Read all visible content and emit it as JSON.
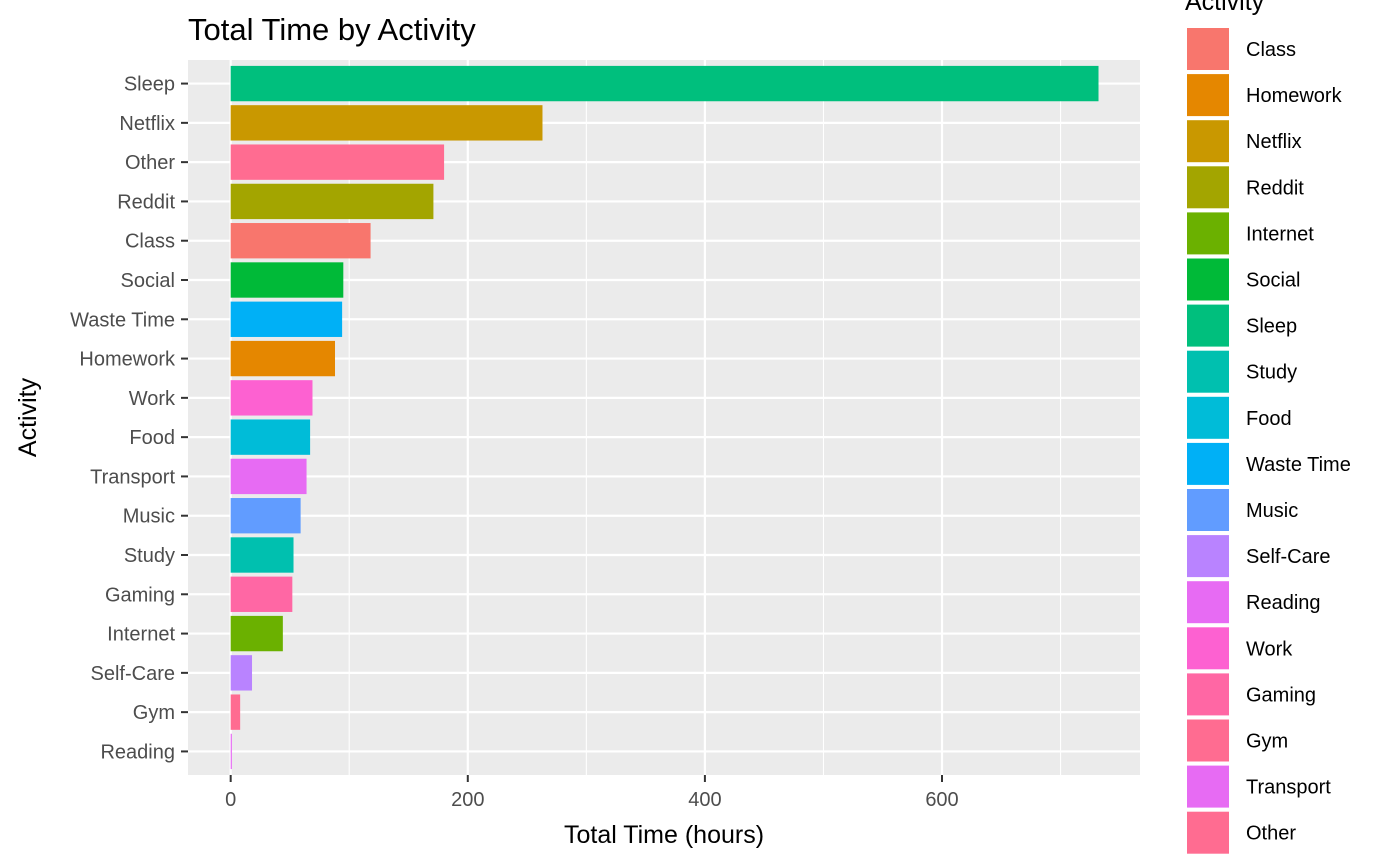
{
  "chart_data": {
    "type": "bar",
    "orientation": "horizontal",
    "title": "Total Time by Activity",
    "xlabel": "Total Time (hours)",
    "ylabel": "Activity",
    "xlim": [
      -36,
      767
    ],
    "xticks": [
      0,
      200,
      400,
      600
    ],
    "grid": true,
    "legend_title": "Activity",
    "legend_position": "right",
    "categories": [
      "Sleep",
      "Netflix",
      "Other",
      "Reddit",
      "Class",
      "Social",
      "Waste Time",
      "Homework",
      "Work",
      "Food",
      "Transport",
      "Music",
      "Study",
      "Gaming",
      "Internet",
      "Self-Care",
      "Gym",
      "Reading"
    ],
    "values": [
      732,
      263,
      180,
      171,
      118,
      95,
      94,
      88,
      69,
      67,
      64,
      59,
      53,
      52,
      44,
      18,
      8,
      1
    ],
    "colors": {
      "Class": "#F8766D",
      "Homework": "#E58700",
      "Netflix": "#C99800",
      "Reddit": "#A3A500",
      "Internet": "#6BB100",
      "Social": "#00BA38",
      "Sleep": "#00BF7D",
      "Study": "#00C0AF",
      "Food": "#00BCD8",
      "Waste Time": "#00B0F6",
      "Music": "#619CFF",
      "Self-Care": "#B983FF",
      "Reading": "#E76BF3",
      "Work": "#FD61D1",
      "Gaming": "#FF67A4",
      "Gym": "#FF6C91",
      "Transport": "#E76BF3",
      "Other": "#FF6C91"
    },
    "legend_order": [
      "Class",
      "Homework",
      "Netflix",
      "Reddit",
      "Internet",
      "Social",
      "Sleep",
      "Study",
      "Food",
      "Waste Time",
      "Music",
      "Self-Care",
      "Reading",
      "Work",
      "Gaming",
      "Gym",
      "Transport",
      "Other"
    ]
  }
}
